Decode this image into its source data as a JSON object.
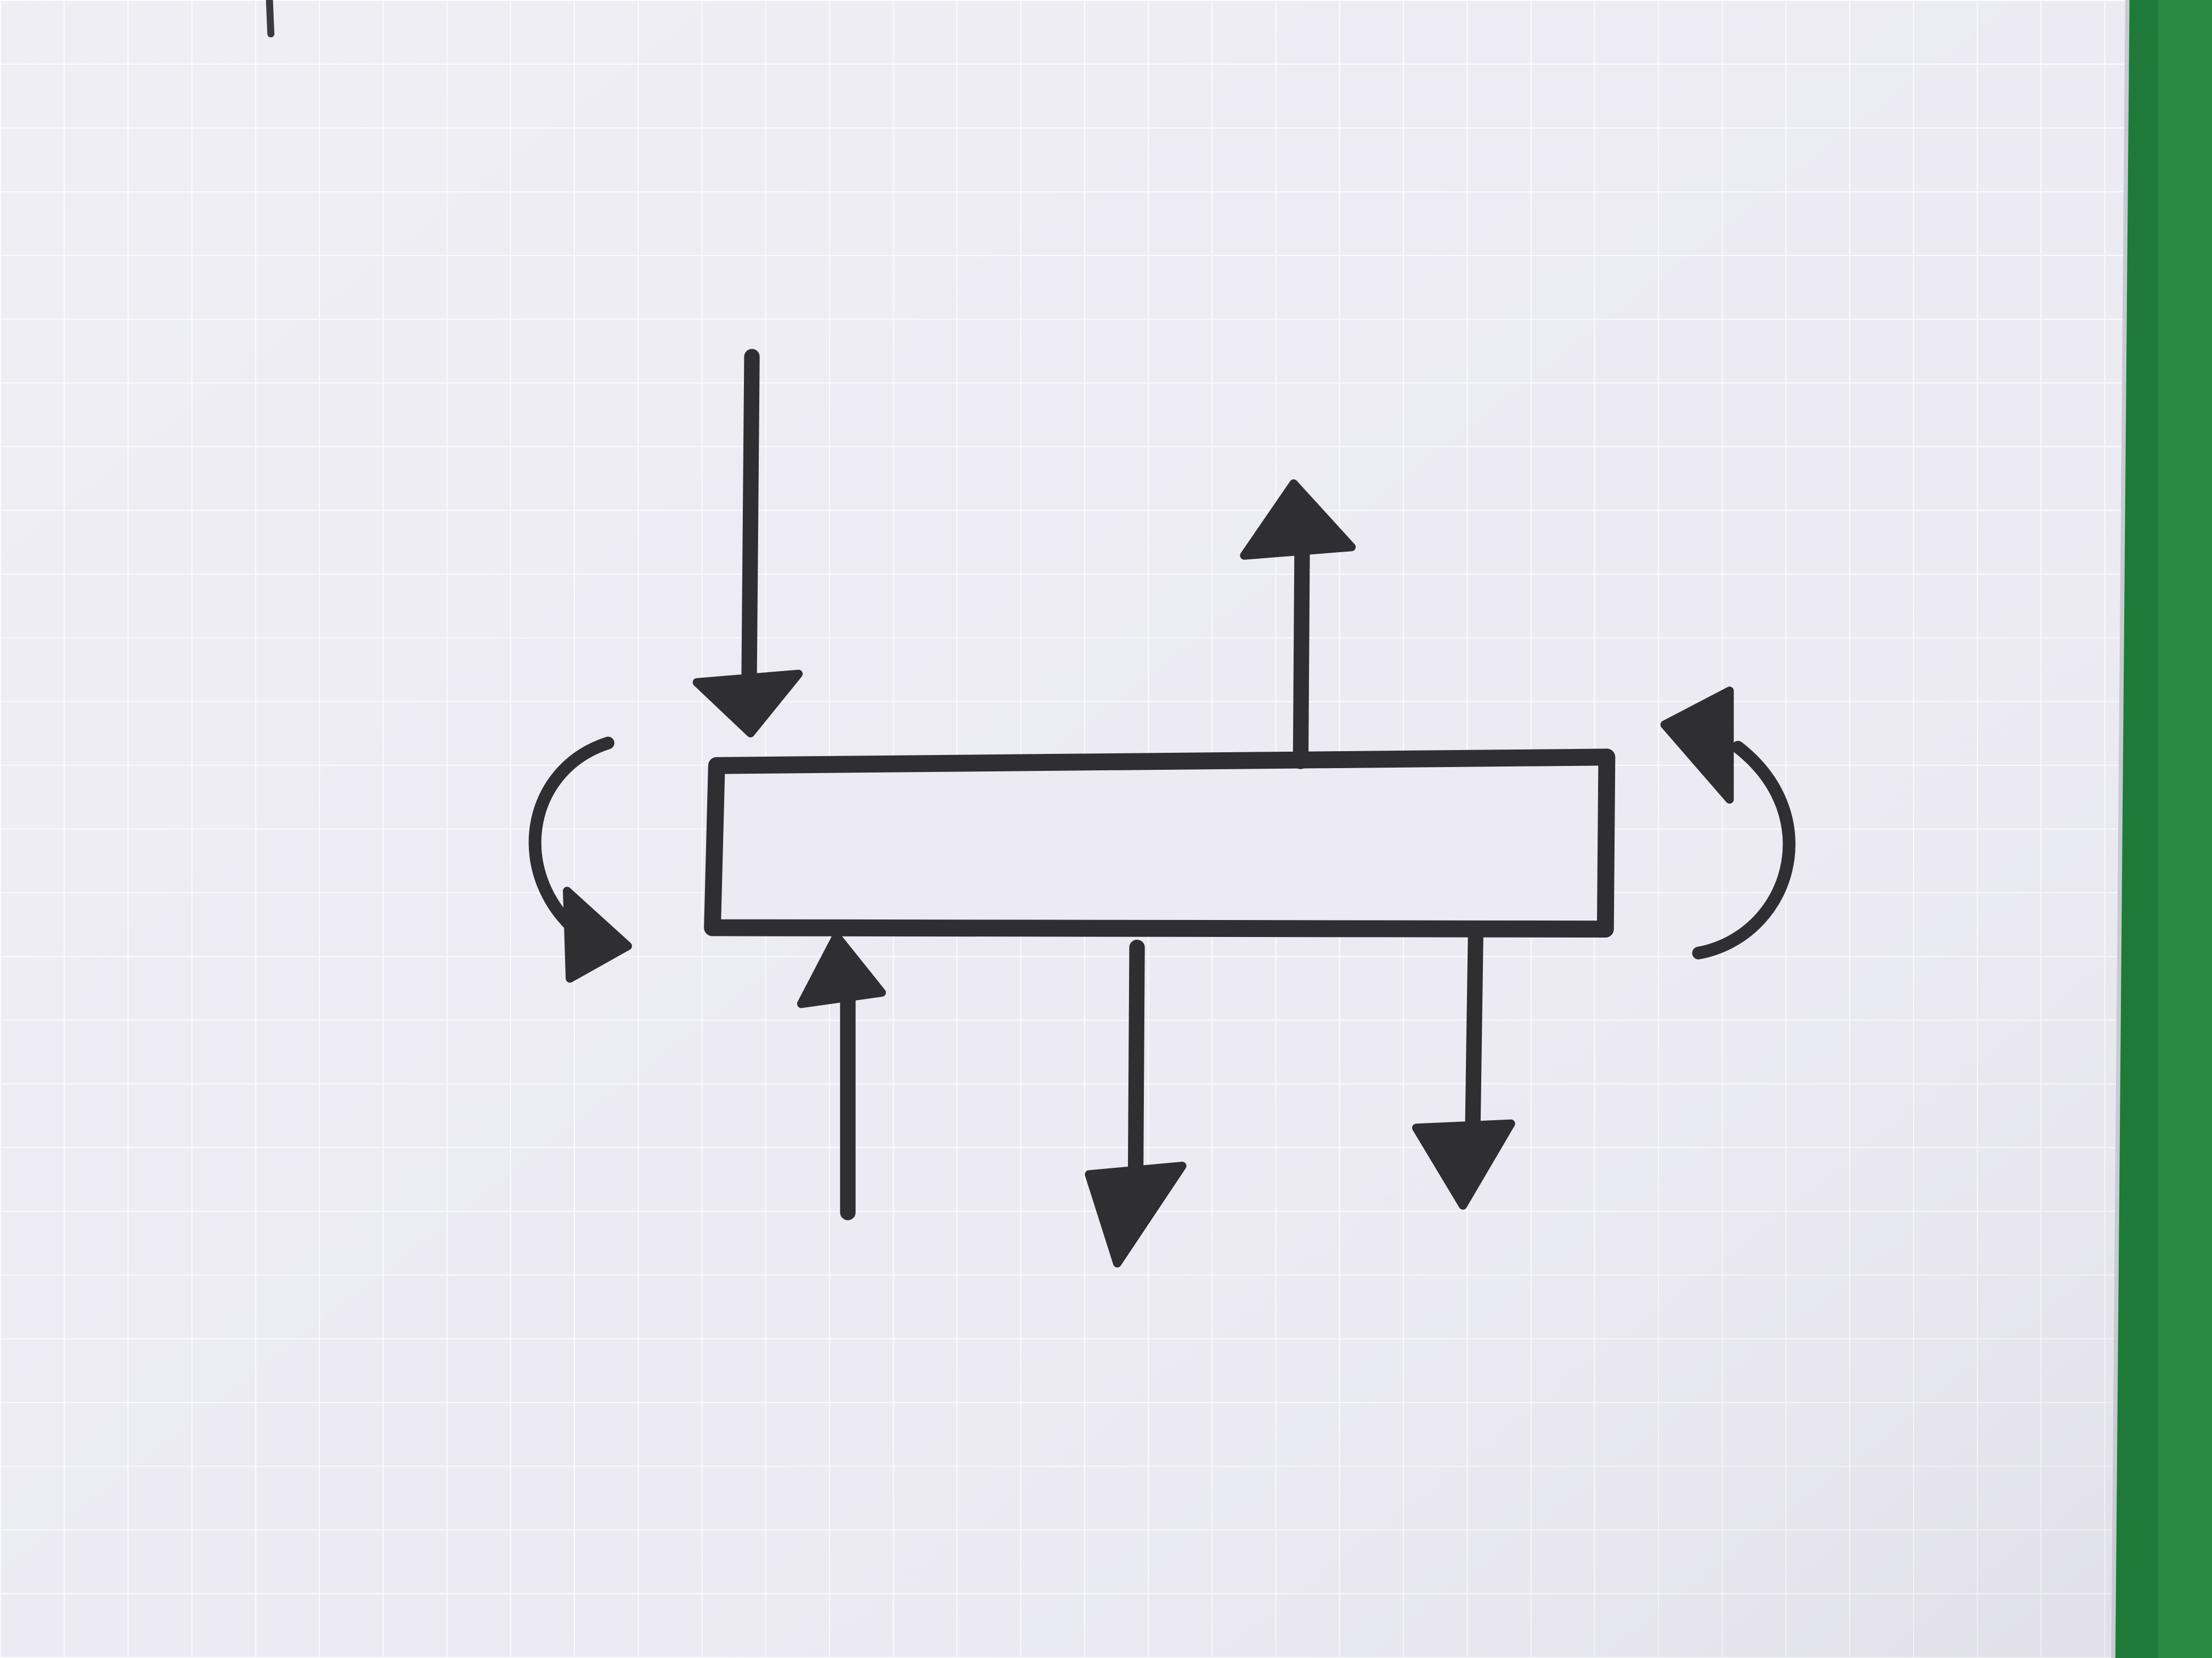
{
  "photo": {
    "paper_color": "#ecebf3",
    "grid_color": "#fbfbfe",
    "ink_color": "#2e2e33",
    "background_color": "#1f7a3a"
  },
  "diagram": {
    "elements": [
      {
        "kind": "beam"
      },
      {
        "kind": "force-arrow",
        "direction": "down"
      },
      {
        "kind": "force-arrow",
        "direction": "up"
      },
      {
        "kind": "force-arrow",
        "direction": "up"
      },
      {
        "kind": "force-arrow",
        "direction": "down"
      },
      {
        "kind": "force-arrow",
        "direction": "down"
      },
      {
        "kind": "moment-arrow",
        "rotation": "counterclockwise"
      },
      {
        "kind": "moment-arrow",
        "rotation": "counterclockwise"
      }
    ]
  }
}
